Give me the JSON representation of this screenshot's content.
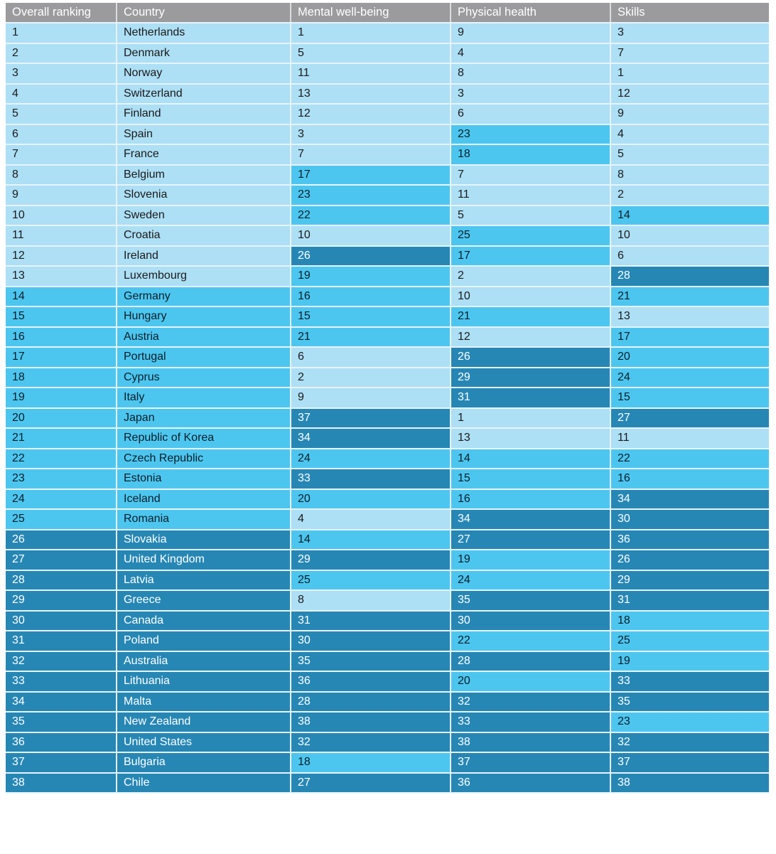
{
  "colors": {
    "header_bg": "#9b9b9e",
    "tier1_top": "#addff5",
    "tier2_middle": "#4dc6ef",
    "tier3_bottom": "#2787b4"
  },
  "table": {
    "headers": [
      "Overall ranking",
      "Country",
      "Mental well-being",
      "Physical health",
      "Skills"
    ],
    "rows": [
      [
        "1",
        "Netherlands",
        "1",
        "9",
        "3"
      ],
      [
        "2",
        "Denmark",
        "5",
        "4",
        "7"
      ],
      [
        "3",
        "Norway",
        "11",
        "8",
        "1"
      ],
      [
        "4",
        "Switzerland",
        "13",
        "3",
        "12"
      ],
      [
        "5",
        "Finland",
        "12",
        "6",
        "9"
      ],
      [
        "6",
        "Spain",
        "3",
        "23",
        "4"
      ],
      [
        "7",
        "France",
        "7",
        "18",
        "5"
      ],
      [
        "8",
        "Belgium",
        "17",
        "7",
        "8"
      ],
      [
        "9",
        "Slovenia",
        "23",
        "11",
        "2"
      ],
      [
        "10",
        "Sweden",
        "22",
        "5",
        "14"
      ],
      [
        "11",
        "Croatia",
        "10",
        "25",
        "10"
      ],
      [
        "12",
        "Ireland",
        "26",
        "17",
        "6"
      ],
      [
        "13",
        "Luxembourg",
        "19",
        "2",
        "28"
      ],
      [
        "14",
        "Germany",
        "16",
        "10",
        "21"
      ],
      [
        "15",
        "Hungary",
        "15",
        "21",
        "13"
      ],
      [
        "16",
        "Austria",
        "21",
        "12",
        "17"
      ],
      [
        "17",
        "Portugal",
        "6",
        "26",
        "20"
      ],
      [
        "18",
        "Cyprus",
        "2",
        "29",
        "24"
      ],
      [
        "19",
        "Italy",
        "9",
        "31",
        "15"
      ],
      [
        "20",
        "Japan",
        "37",
        "1",
        "27"
      ],
      [
        "21",
        "Republic of Korea",
        "34",
        "13",
        "11"
      ],
      [
        "22",
        "Czech Republic",
        "24",
        "14",
        "22"
      ],
      [
        "23",
        "Estonia",
        "33",
        "15",
        "16"
      ],
      [
        "24",
        "Iceland",
        "20",
        "16",
        "34"
      ],
      [
        "25",
        "Romania",
        "4",
        "34",
        "30"
      ],
      [
        "26",
        "Slovakia",
        "14",
        "27",
        "36"
      ],
      [
        "27",
        "United Kingdom",
        "29",
        "19",
        "26"
      ],
      [
        "28",
        "Latvia",
        "25",
        "24",
        "29"
      ],
      [
        "29",
        "Greece",
        "8",
        "35",
        "31"
      ],
      [
        "30",
        "Canada",
        "31",
        "30",
        "18"
      ],
      [
        "31",
        "Poland",
        "30",
        "22",
        "25"
      ],
      [
        "32",
        "Australia",
        "35",
        "28",
        "19"
      ],
      [
        "33",
        "Lithuania",
        "36",
        "20",
        "33"
      ],
      [
        "34",
        "Malta",
        "28",
        "32",
        "35"
      ],
      [
        "35",
        "New Zealand",
        "38",
        "33",
        "23"
      ],
      [
        "36",
        "United States",
        "32",
        "38",
        "32"
      ],
      [
        "37",
        "Bulgaria",
        "18",
        "37",
        "37"
      ],
      [
        "38",
        "Chile",
        "27",
        "36",
        "38"
      ]
    ]
  }
}
